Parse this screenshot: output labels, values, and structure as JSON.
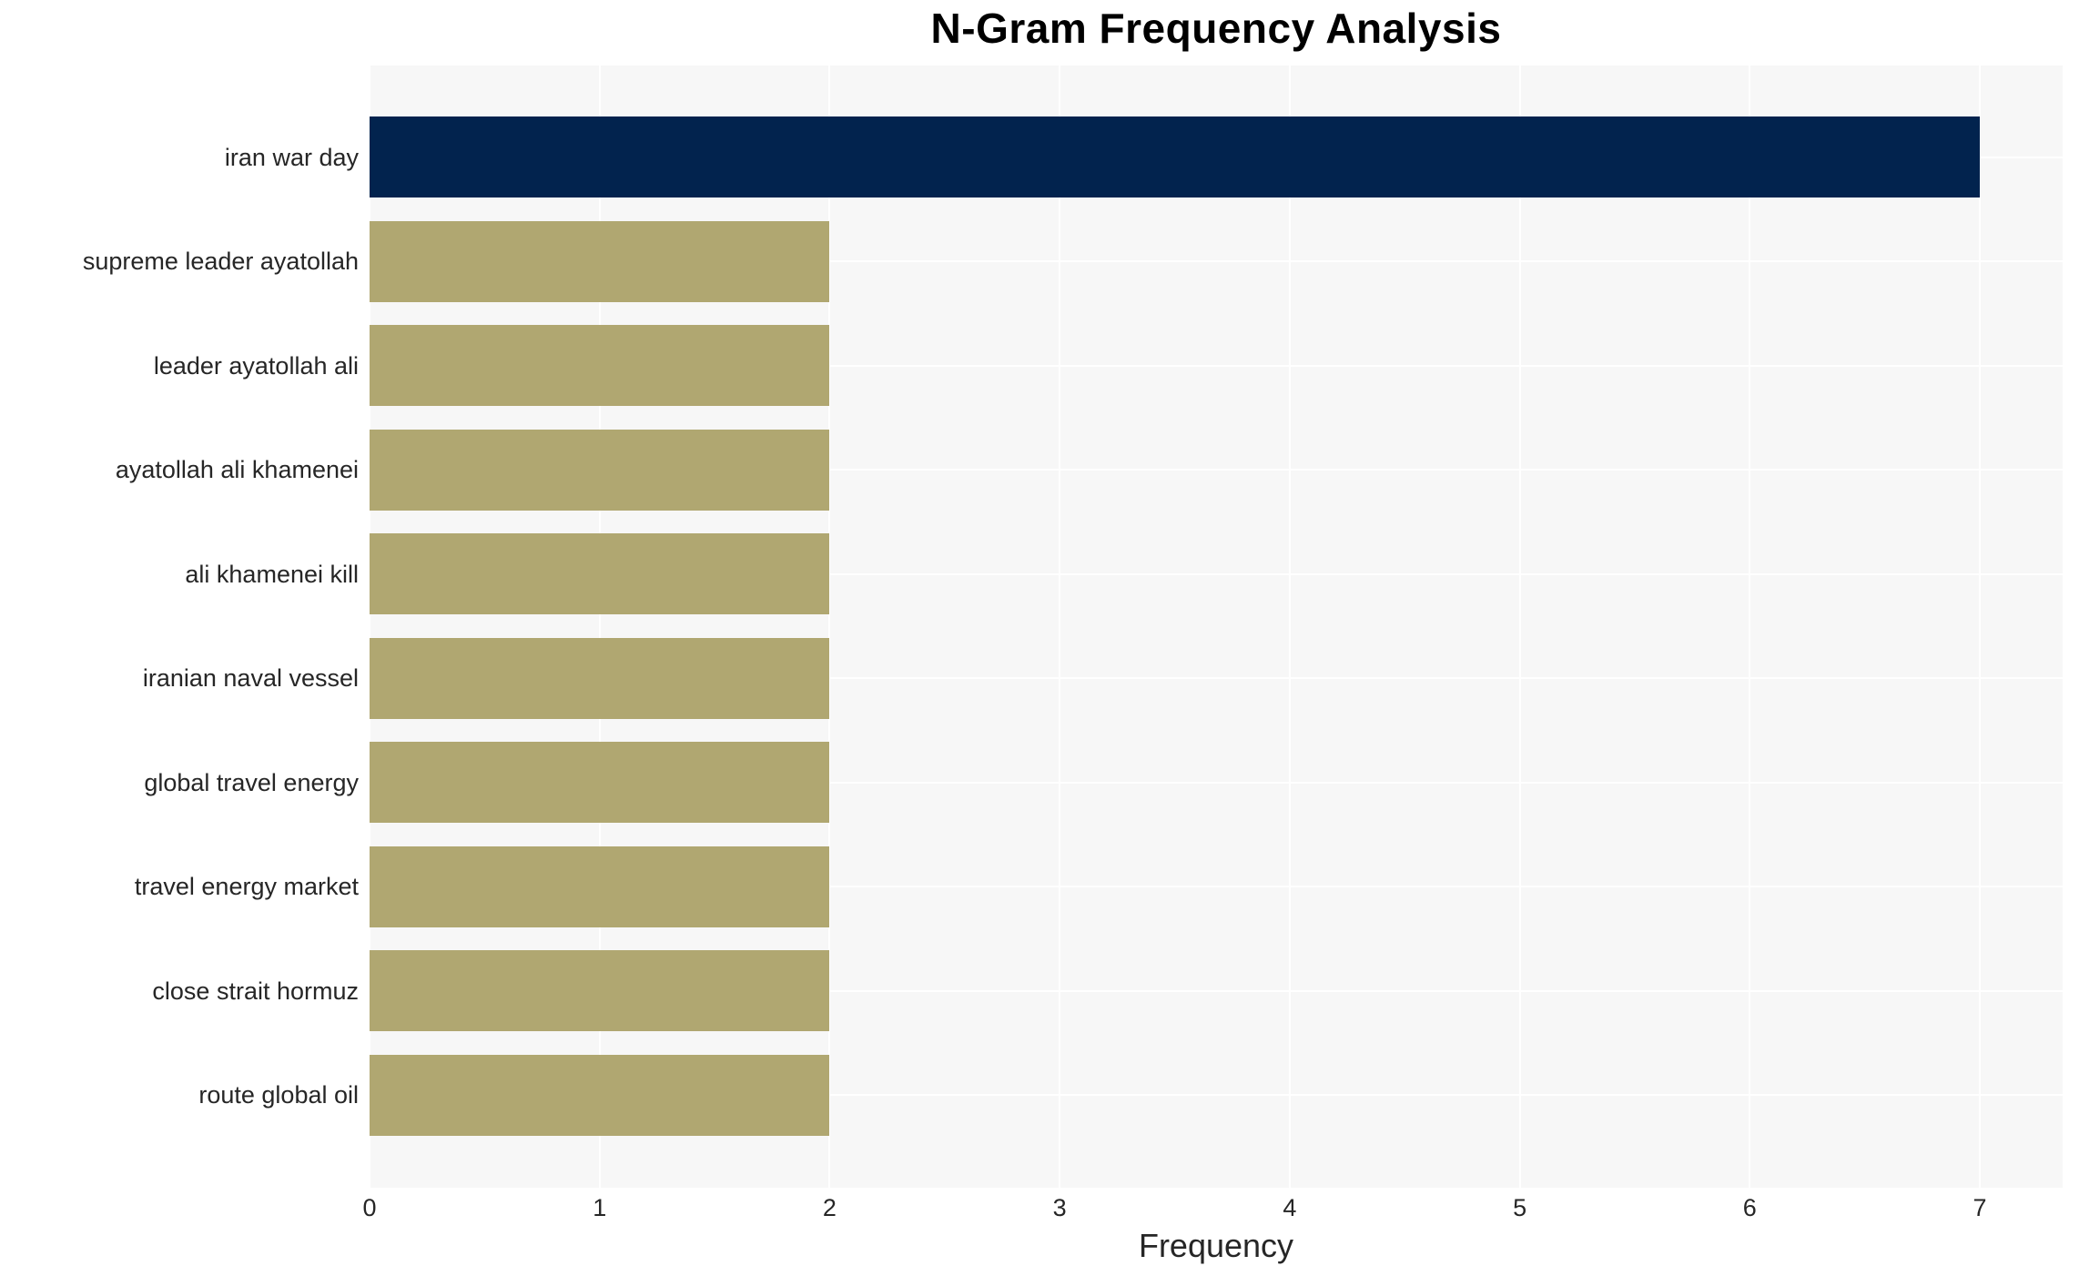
{
  "chart_data": {
    "type": "bar",
    "orientation": "horizontal",
    "title": "N-Gram Frequency Analysis",
    "xlabel": "Frequency",
    "ylabel": "",
    "categories": [
      "iran war day",
      "supreme leader ayatollah",
      "leader ayatollah ali",
      "ayatollah ali khamenei",
      "ali khamenei kill",
      "iranian naval vessel",
      "global travel energy",
      "travel energy market",
      "close strait hormuz",
      "route global oil"
    ],
    "values": [
      7,
      2,
      2,
      2,
      2,
      2,
      2,
      2,
      2,
      2
    ],
    "bar_colors": [
      "#02234e",
      "#b0a771",
      "#b0a771",
      "#b0a771",
      "#b0a771",
      "#b0a771",
      "#b0a771",
      "#b0a771",
      "#b0a771",
      "#b0a771"
    ],
    "x_ticks": [
      0,
      1,
      2,
      3,
      4,
      5,
      6,
      7
    ],
    "xlim": [
      0,
      7.36
    ],
    "grid": true,
    "legend": false,
    "colors": {
      "highlight_bar": "#02234e",
      "default_bar": "#b0a771",
      "plot_background": "#f7f7f7",
      "gridline": "#ffffff",
      "tick_text": "#262626",
      "title_text": "#000000"
    }
  }
}
